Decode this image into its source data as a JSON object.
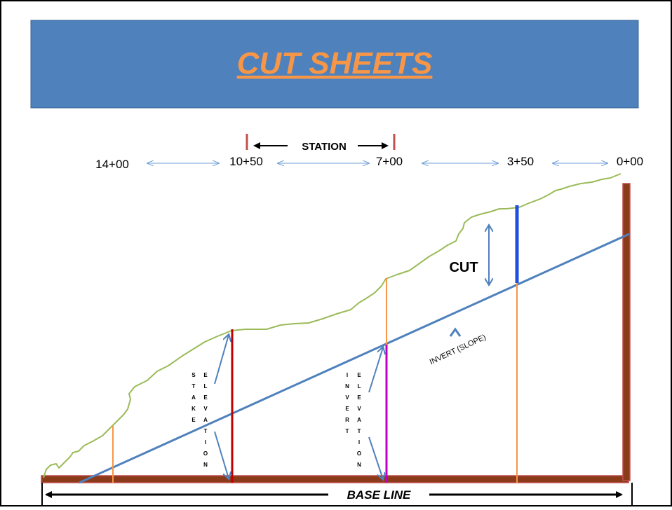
{
  "title": "CUT SHEETS",
  "stations": [
    "14+00",
    "10+50",
    "7+00",
    "3+50",
    "0+00"
  ],
  "labels": {
    "station": "STATION",
    "cut": "CUT",
    "invert_slope": "INVERT (SLOPE)",
    "base_line": "BASE LINE"
  },
  "vertical_labels": {
    "stake": [
      "S",
      "T",
      "A",
      "K",
      "E"
    ],
    "invert": [
      "I",
      "N",
      "V",
      "E",
      "R",
      "T"
    ],
    "elevation": [
      "E",
      "L",
      "E",
      "V",
      "A",
      "T",
      "I",
      "O",
      "N"
    ]
  },
  "colors": {
    "banner": "#4f81bd",
    "title": "#f79646",
    "ground": "#9bbb59",
    "invert": "#4f81bd",
    "base": "#8b3a1a",
    "stake_line": "#c00000",
    "invert_line": "#c000c0",
    "cut_line": "#1f4fe0",
    "orange_line": "#f79646",
    "thin_arrow": "#6f9fd8",
    "station_mark": "#c0504d"
  }
}
